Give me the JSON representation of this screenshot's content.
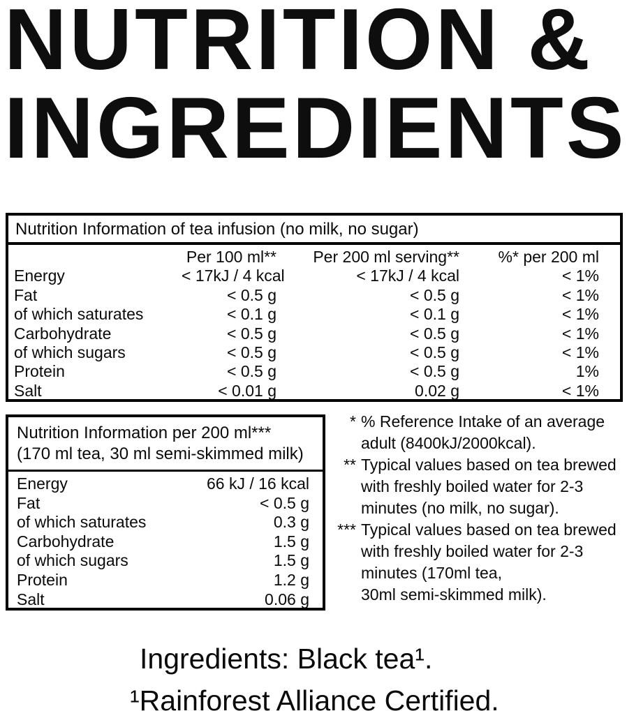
{
  "page": {
    "background_color": "#ffffff",
    "text_color": "#0a0a0a",
    "border_color": "#000000"
  },
  "title": {
    "line1": "NUTRITION &",
    "line2": "INGREDIENTS"
  },
  "infusion_table": {
    "caption": "Nutrition Information of tea infusion (no milk, no sugar)",
    "columns": [
      "",
      "Per 100 ml**",
      "Per 200 ml serving**",
      "%* per 200 ml"
    ],
    "rows": [
      {
        "label": "Energy",
        "per100": "< 17kJ / 4 kcal",
        "per200": "< 17kJ / 4 kcal",
        "ri": "< 1%"
      },
      {
        "label": "Fat",
        "per100": "< 0.5 g",
        "per200": "< 0.5 g",
        "ri": "< 1%"
      },
      {
        "label": "of which saturates",
        "per100": "< 0.1 g",
        "per200": "< 0.1 g",
        "ri": "< 1%"
      },
      {
        "label": "Carbohydrate",
        "per100": "< 0.5 g",
        "per200": "< 0.5 g",
        "ri": "< 1%"
      },
      {
        "label": "of which sugars",
        "per100": "< 0.5 g",
        "per200": "< 0.5 g",
        "ri": "< 1%"
      },
      {
        "label": "Protein",
        "per100": "< 0.5 g",
        "per200": "< 0.5 g",
        "ri": "1%"
      },
      {
        "label": "Salt",
        "per100": "< 0.01 g",
        "per200": "0.02 g",
        "ri": "< 1%"
      }
    ]
  },
  "milk_table": {
    "caption_line1": "Nutrition Information per 200 ml***",
    "caption_line2": "(170 ml tea, 30 ml semi-skimmed milk)",
    "rows": [
      {
        "label": "Energy",
        "value": "66 kJ / 16 kcal"
      },
      {
        "label": "Fat",
        "value": "< 0.5 g"
      },
      {
        "label": "of which saturates",
        "value": "0.3 g"
      },
      {
        "label": "Carbohydrate",
        "value": "1.5 g"
      },
      {
        "label": "of which sugars",
        "value": "1.5 g"
      },
      {
        "label": "Protein",
        "value": "1.2 g"
      },
      {
        "label": "Salt",
        "value": "0.06 g"
      }
    ]
  },
  "footnotes": [
    {
      "marker": "*",
      "lines": [
        "% Reference Intake of an average",
        "adult (8400kJ/2000kcal)."
      ]
    },
    {
      "marker": "**",
      "lines": [
        "Typical values based on tea brewed",
        "with freshly boiled water for 2-3",
        "minutes (no milk, no sugar)."
      ]
    },
    {
      "marker": "***",
      "lines": [
        "Typical values based on tea brewed",
        "with freshly boiled water for 2-3",
        "minutes (170ml tea,",
        "30ml semi-skimmed milk)."
      ]
    }
  ],
  "ingredients": {
    "line1": "Ingredients: Black tea¹.",
    "line2": "¹Rainforest Alliance Certified."
  }
}
